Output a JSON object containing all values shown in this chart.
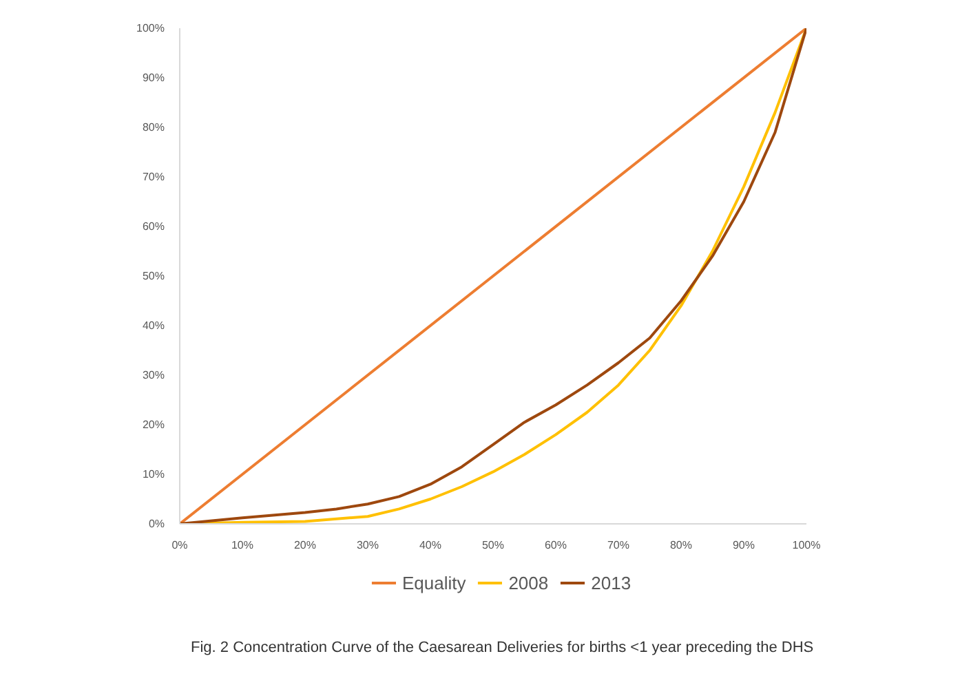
{
  "chart_data": {
    "type": "line",
    "legend": "bottom",
    "grid": false,
    "marker": "none",
    "line_style": "solid",
    "xlim": [
      0,
      100
    ],
    "ylim": [
      0,
      100
    ],
    "xticks": [
      {
        "value": 0,
        "label": "0%"
      },
      {
        "value": 10,
        "label": "10%"
      },
      {
        "value": 20,
        "label": "20%"
      },
      {
        "value": 30,
        "label": "30%"
      },
      {
        "value": 40,
        "label": "40%"
      },
      {
        "value": 50,
        "label": "50%"
      },
      {
        "value": 60,
        "label": "60%"
      },
      {
        "value": 70,
        "label": "70%"
      },
      {
        "value": 80,
        "label": "80%"
      },
      {
        "value": 90,
        "label": "90%"
      },
      {
        "value": 100,
        "label": "100%"
      }
    ],
    "yticks": [
      {
        "value": 0,
        "label": "0%"
      },
      {
        "value": 10,
        "label": "10%"
      },
      {
        "value": 20,
        "label": "20%"
      },
      {
        "value": 30,
        "label": "30%"
      },
      {
        "value": 40,
        "label": "40%"
      },
      {
        "value": 50,
        "label": "50%"
      },
      {
        "value": 60,
        "label": "60%"
      },
      {
        "value": 70,
        "label": "70%"
      },
      {
        "value": 80,
        "label": "80%"
      },
      {
        "value": 90,
        "label": "90%"
      },
      {
        "value": 100,
        "label": "100%"
      }
    ],
    "series": [
      {
        "name": "Equality",
        "color": "#ed7d31",
        "x": [
          0,
          100
        ],
        "values": [
          0,
          100
        ]
      },
      {
        "name": "2008",
        "color": "#ffc000",
        "x": [
          0,
          10,
          20,
          30,
          35,
          40,
          45,
          50,
          55,
          60,
          65,
          70,
          75,
          80,
          85,
          90,
          95,
          100
        ],
        "values": [
          0,
          0.3,
          0.5,
          1.5,
          3,
          5,
          7.5,
          10.5,
          14,
          18,
          22.5,
          28,
          35,
          44,
          55,
          68,
          83,
          100
        ]
      },
      {
        "name": "2013",
        "color": "#9e480e",
        "x": [
          0,
          10,
          20,
          25,
          30,
          35,
          40,
          45,
          50,
          55,
          60,
          65,
          70,
          75,
          80,
          85,
          90,
          95,
          100
        ],
        "values": [
          0,
          1.2,
          2.3,
          3,
          4,
          5.5,
          8,
          11.5,
          16,
          20.5,
          24,
          28,
          32.5,
          37.5,
          45,
          54,
          65,
          79,
          100
        ]
      }
    ],
    "annotations": [
      "Fig. 2 Concentration Curve of the Caesarean Deliveries for births <1 year preceding the DHS"
    ]
  }
}
